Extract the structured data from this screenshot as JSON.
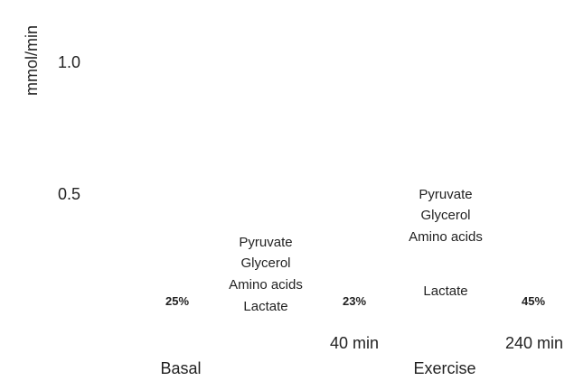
{
  "chart_data": {
    "type": "bar",
    "title": "",
    "xlabel": "",
    "ylabel": "mmol/min",
    "yticks": [
      "1.0",
      "0.5"
    ],
    "groups": [
      {
        "name": "Basal",
        "bars": [
          {
            "label": "",
            "percent": "25%",
            "segments": []
          }
        ]
      },
      {
        "name": "Exercise",
        "bars": [
          {
            "label": "40 min",
            "percent": "23%",
            "segments": [
              "Pyruvate",
              "Glycerol",
              "Amino acids",
              "Lactate"
            ]
          },
          {
            "label": "240 min",
            "percent": "45%",
            "segments": [
              "Pyruvate",
              "Glycerol",
              "Amino acids",
              "Lactate"
            ]
          }
        ]
      }
    ],
    "grid": false,
    "legend": "none"
  }
}
